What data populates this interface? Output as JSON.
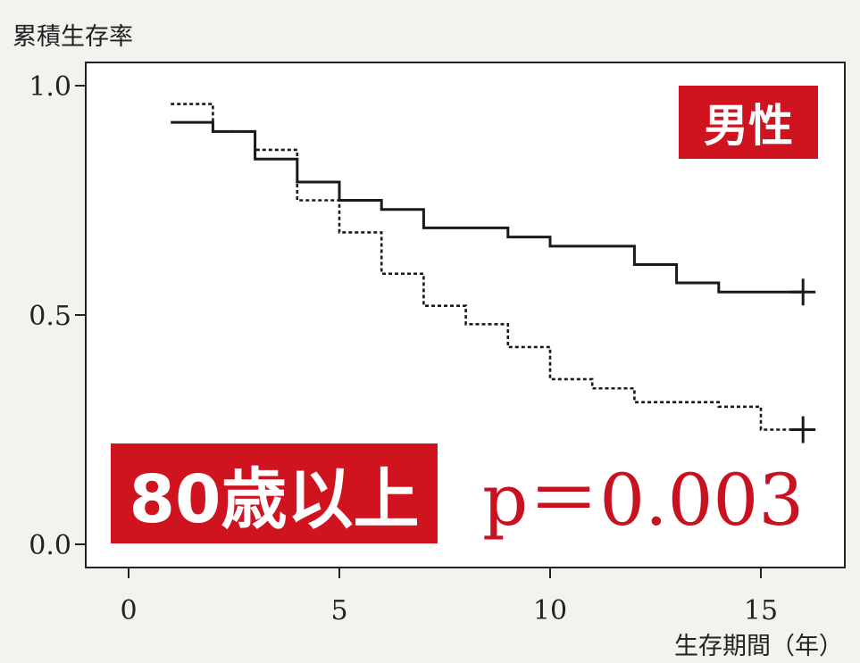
{
  "colors": {
    "accent_red": "#cf1420",
    "line": "#1a1a1a",
    "frame": "#222222",
    "background": "#f4f2ee",
    "plot_background": "#ffffff"
  },
  "labels": {
    "ylabel": "累積生存率",
    "xlabel": "生存期間（年）",
    "sex_badge": "男性",
    "age_badge": "80歳以上",
    "p_value": "p＝0.003"
  },
  "chart_data": {
    "type": "line",
    "title": "",
    "xlabel": "生存期間（年）",
    "ylabel": "累積生存率",
    "xlim": [
      -1,
      17
    ],
    "ylim": [
      -0.05,
      1.05
    ],
    "xticks": [
      0,
      5,
      10,
      15
    ],
    "xtick_labels": [
      "0",
      "5",
      "10",
      "15"
    ],
    "yticks": [
      0.0,
      0.5,
      1.0
    ],
    "ytick_labels": [
      "0.0",
      "0.5",
      "1.0"
    ],
    "grid": false,
    "legend": false,
    "series": [
      {
        "style": "solid",
        "step": true,
        "x": [
          1,
          2,
          3,
          4,
          5,
          6,
          7,
          9,
          10,
          12,
          13,
          14,
          16
        ],
        "y": [
          0.92,
          0.9,
          0.84,
          0.79,
          0.75,
          0.73,
          0.69,
          0.67,
          0.65,
          0.61,
          0.57,
          0.55,
          0.55
        ],
        "censor_x": 16,
        "censor_y": 0.55
      },
      {
        "style": "dashed",
        "step": true,
        "x": [
          1,
          2,
          3,
          4,
          5,
          6,
          7,
          8,
          9,
          10,
          11,
          12,
          14,
          15,
          16
        ],
        "y": [
          0.96,
          0.9,
          0.86,
          0.75,
          0.68,
          0.59,
          0.52,
          0.48,
          0.43,
          0.36,
          0.34,
          0.31,
          0.3,
          0.25,
          0.25
        ],
        "censor_x": 16,
        "censor_y": 0.25
      }
    ]
  }
}
